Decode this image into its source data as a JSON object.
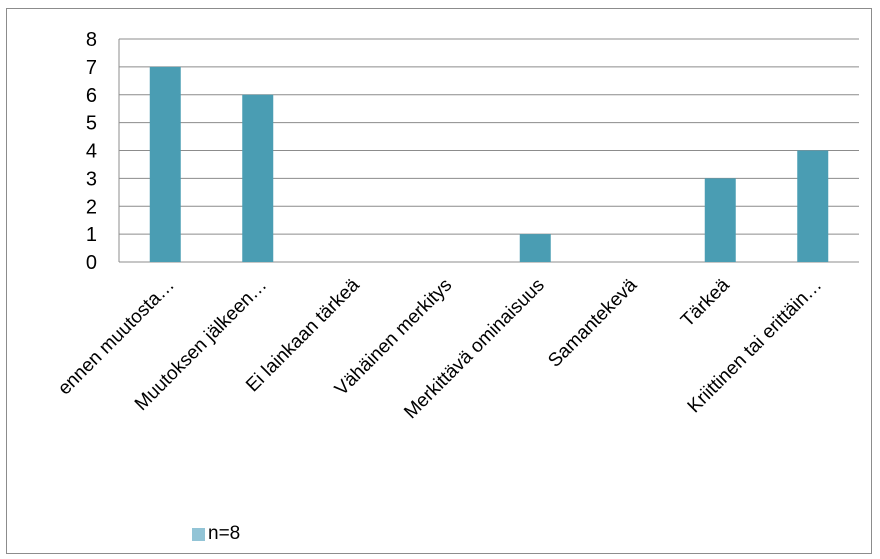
{
  "chart_data": {
    "type": "bar",
    "categories": [
      "ennen muutosta…",
      "Muutoksen jälkeen…",
      "Ei lainkaan tärkeä",
      "Vähäinen merkitys",
      "Merkittävä ominaisuus",
      "Samantekevä",
      "Tärkeä",
      "Kriittinen tai erittäin…"
    ],
    "series": [
      {
        "name": "n=8",
        "values": [
          7,
          6,
          0,
          0,
          1,
          0,
          3,
          4
        ]
      }
    ],
    "ylim": [
      0,
      8
    ],
    "yticks": [
      "0",
      "1",
      "2",
      "3",
      "4",
      "5",
      "6",
      "7",
      "8"
    ],
    "grid": true,
    "legend_position": "bottom-left",
    "colors": {
      "bar": "#4a9db3",
      "legend_swatch": "#92c4d6",
      "grid": "#8c8c8c"
    }
  }
}
